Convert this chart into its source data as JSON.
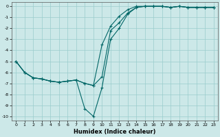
{
  "xlabel": "Humidex (Indice chaleur)",
  "bg_color": "#cce8e8",
  "grid_color": "#99cccc",
  "line_color": "#006666",
  "xlim": [
    -0.5,
    23.5
  ],
  "ylim": [
    -10.4,
    0.4
  ],
  "xticks": [
    0,
    1,
    2,
    3,
    4,
    5,
    6,
    7,
    8,
    9,
    10,
    11,
    12,
    13,
    14,
    15,
    16,
    17,
    18,
    19,
    20,
    21,
    22,
    23
  ],
  "yticks": [
    0,
    -1,
    -2,
    -3,
    -4,
    -5,
    -6,
    -7,
    -8,
    -9,
    -10
  ],
  "line1_x": [
    0,
    1,
    2,
    3,
    4,
    5,
    6,
    7,
    8,
    9,
    10,
    11,
    12,
    13,
    14,
    15,
    16,
    17,
    18,
    19,
    20,
    21,
    22,
    23
  ],
  "line1_y": [
    -5.0,
    -6.0,
    -6.5,
    -6.6,
    -6.8,
    -6.9,
    -6.8,
    -6.7,
    -7.0,
    -7.2,
    -6.4,
    -2.2,
    -1.5,
    -0.6,
    -0.1,
    0.0,
    0.0,
    0.0,
    -0.1,
    0.0,
    -0.1,
    -0.1,
    -0.1,
    -0.1
  ],
  "line2_x": [
    0,
    1,
    2,
    3,
    4,
    5,
    6,
    7,
    8,
    9,
    10,
    11,
    12,
    13,
    14,
    15,
    16,
    17,
    18,
    19,
    20,
    21,
    22,
    23
  ],
  "line2_y": [
    -5.0,
    -6.0,
    -6.5,
    -6.6,
    -6.8,
    -6.9,
    -6.8,
    -6.7,
    -9.3,
    -10.0,
    -7.4,
    -3.0,
    -2.0,
    -0.7,
    -0.1,
    0.0,
    0.0,
    0.0,
    -0.1,
    0.0,
    -0.1,
    -0.1,
    -0.1,
    -0.1
  ],
  "line3_x": [
    0,
    1,
    2,
    3,
    4,
    5,
    6,
    7,
    8,
    9,
    10,
    11,
    12,
    13,
    14,
    15,
    16,
    17,
    18,
    19,
    20,
    21,
    22,
    23
  ],
  "line3_y": [
    -5.0,
    -6.0,
    -6.5,
    -6.6,
    -6.8,
    -6.9,
    -6.8,
    -6.7,
    -7.0,
    -7.2,
    -3.5,
    -1.8,
    -0.9,
    -0.3,
    0.0,
    0.0,
    0.0,
    0.0,
    -0.1,
    0.0,
    -0.1,
    -0.1,
    -0.1,
    -0.1
  ],
  "xlabel_fontsize": 6,
  "tick_fontsize": 4.5
}
